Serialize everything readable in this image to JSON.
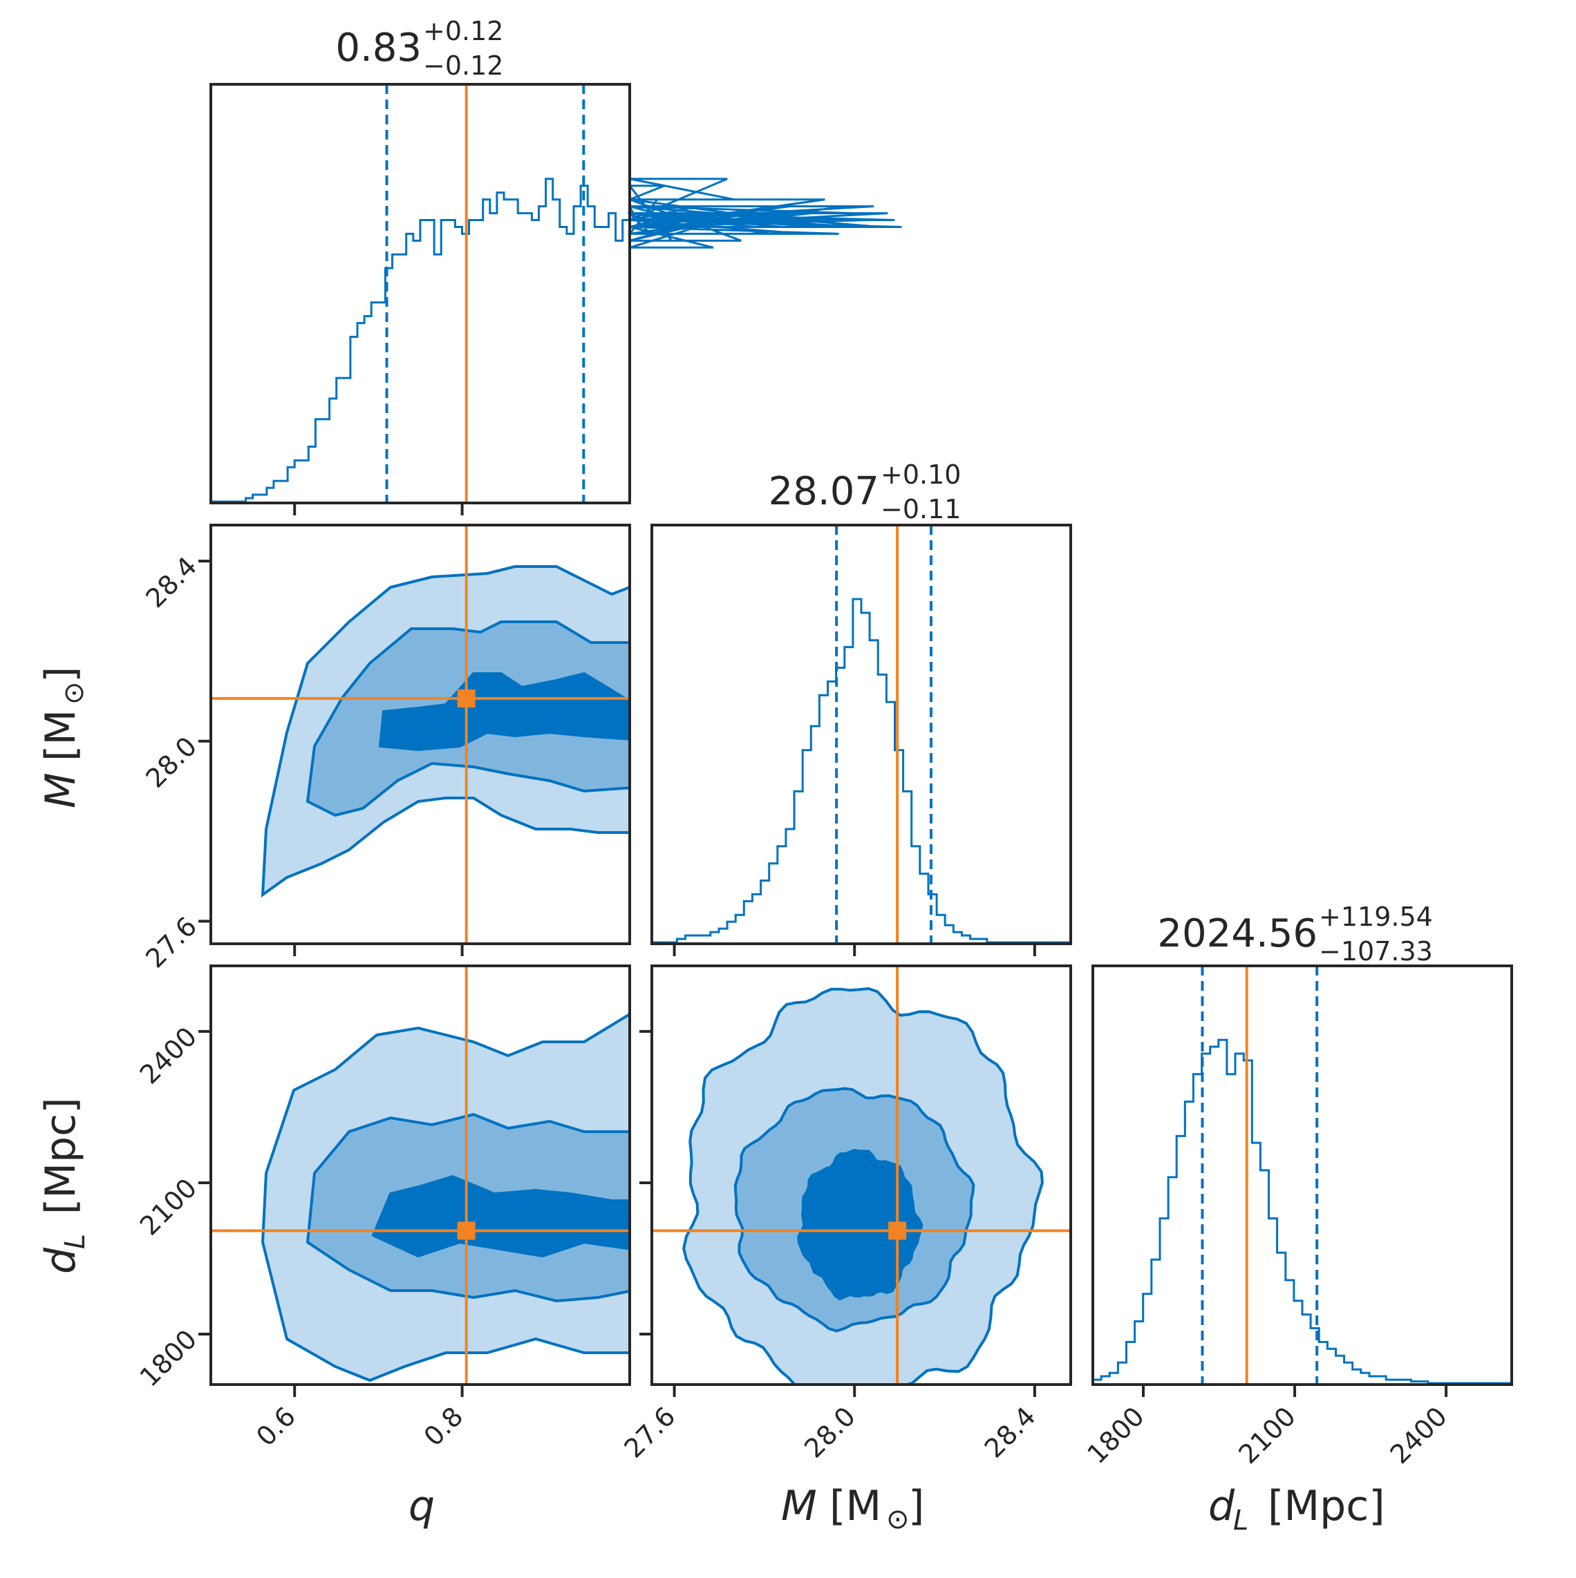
{
  "colors": {
    "posterior": "#0072C1",
    "fill_inner": "#0072C1",
    "fill_mid": "#80B6DE",
    "fill_outer": "#C0DAEF",
    "truth": "#F28322",
    "axes": "#262626"
  },
  "chart_data": {
    "type": "corner",
    "parameters": [
      {
        "key": "q",
        "label": "q",
        "range": [
          0.5,
          1.0
        ],
        "ticks": [
          "0.6",
          "0.8"
        ],
        "tick_values": [
          0.6,
          0.8
        ],
        "truth": 0.805,
        "ci": [
          0.71,
          0.945
        ],
        "title_main": "0.83",
        "title_plus": "+0.12",
        "title_minus": "−0.12"
      },
      {
        "key": "M",
        "label": "M [M⊙]",
        "range": [
          27.55,
          28.48
        ],
        "ticks": [
          "27.6",
          "28.0",
          "28.4"
        ],
        "tick_values": [
          27.6,
          28.0,
          28.4
        ],
        "truth": 28.095,
        "ci": [
          27.96,
          28.17
        ],
        "title_main": "28.07",
        "title_plus": "+0.10",
        "title_minus": "−0.11"
      },
      {
        "key": "dL",
        "label": "dL [Mpc]",
        "range": [
          1700,
          2530
        ],
        "ticks": [
          "1800",
          "2100",
          "2400"
        ],
        "tick_values": [
          1800,
          2100,
          2400
        ],
        "truth": 2005,
        "ci": [
          1917,
          2144
        ],
        "title_main": "2024.56",
        "title_plus": "+119.54",
        "title_minus": "−107.33"
      }
    ],
    "hist_q": {
      "bin_start": 0.5,
      "bin_width": 0.00833,
      "counts": [
        0,
        0,
        0,
        0,
        0,
        0.01,
        0.02,
        0.02,
        0.04,
        0.06,
        0.06,
        0.1,
        0.12,
        0.12,
        0.16,
        0.24,
        0.24,
        0.3,
        0.36,
        0.36,
        0.48,
        0.52,
        0.54,
        0.58,
        0.58,
        0.68,
        0.72,
        0.72,
        0.78,
        0.76,
        0.82,
        0.82,
        0.72,
        0.82,
        0.82,
        0.8,
        0.78,
        0.82,
        0.82,
        0.88,
        0.84,
        0.9,
        0.88,
        0.88,
        0.84,
        0.84,
        0.82,
        0.86,
        0.94,
        0.88,
        0.8,
        0.78,
        0.86,
        0.92,
        0.86,
        0.8,
        0.8,
        0.84,
        0.76,
        0.82,
        0.86,
        0.82,
        0.84,
        0.78,
        0.88,
        0.92,
        0.76,
        0.8,
        0.84,
        0.82,
        0.86,
        0.8,
        0.74,
        0.82,
        0.94,
        0.88,
        0.76,
        0.84,
        0.8,
        0.84,
        0.78,
        0.84,
        0.8,
        0.86,
        0.82,
        0.78,
        0.84,
        0.8,
        0.88,
        0.8,
        0.78,
        0.86,
        0.84,
        0.8,
        0.82,
        0.86,
        0.8,
        0.84,
        0.82,
        0.8
      ]
    },
    "hist_M": {
      "bin_start": 27.55,
      "bin_width": 0.0186,
      "counts": [
        0,
        0,
        0,
        0.01,
        0.02,
        0.02,
        0.02,
        0.03,
        0.04,
        0.06,
        0.08,
        0.12,
        0.14,
        0.18,
        0.23,
        0.28,
        0.33,
        0.44,
        0.56,
        0.63,
        0.72,
        0.76,
        0.8,
        0.86,
        1.0,
        0.96,
        0.88,
        0.78,
        0.7,
        0.56,
        0.44,
        0.28,
        0.2,
        0.14,
        0.08,
        0.05,
        0.03,
        0.02,
        0.01,
        0.01,
        0,
        0,
        0,
        0,
        0,
        0,
        0,
        0,
        0,
        0
      ]
    },
    "hist_dL": {
      "bin_start": 1700,
      "bin_width": 16.6,
      "counts": [
        0.01,
        0.02,
        0.03,
        0.06,
        0.12,
        0.18,
        0.26,
        0.36,
        0.48,
        0.6,
        0.72,
        0.82,
        0.9,
        0.96,
        0.98,
        1.0,
        0.9,
        0.96,
        0.94,
        0.7,
        0.62,
        0.48,
        0.38,
        0.3,
        0.24,
        0.2,
        0.16,
        0.12,
        0.1,
        0.08,
        0.06,
        0.04,
        0.03,
        0.02,
        0.02,
        0.01,
        0.01,
        0.01,
        0.005,
        0.005,
        0,
        0,
        0,
        0,
        0,
        0,
        0,
        0,
        0,
        0
      ]
    }
  },
  "titles": {
    "q": {
      "main": "0.83",
      "plus": "+0.12",
      "minus": "−0.12"
    },
    "M": {
      "main": "28.07",
      "plus": "+0.10",
      "minus": "−0.11"
    },
    "dL": {
      "main": "2024.56",
      "plus": "+119.54",
      "minus": "−107.33"
    }
  },
  "labels": {
    "x_q": "q",
    "x_M_main": "M",
    "x_M_unit": "[M",
    "x_M_sub": "⊙",
    "x_M_close": "]",
    "x_dL_main": "d",
    "x_dL_sub": "L",
    "x_dL_unit": "[Mpc]",
    "y_M_main": "M",
    "y_M_unit": "[M",
    "y_M_sub": "⊙",
    "y_M_close": "]",
    "y_dL_main": "d",
    "y_dL_sub": "L",
    "y_dL_unit": "[Mpc]"
  },
  "ticks": {
    "q": [
      "0.6",
      "0.8"
    ],
    "M": [
      "27.6",
      "28.0",
      "28.4"
    ],
    "dL": [
      "1800",
      "2100",
      "2400"
    ]
  }
}
